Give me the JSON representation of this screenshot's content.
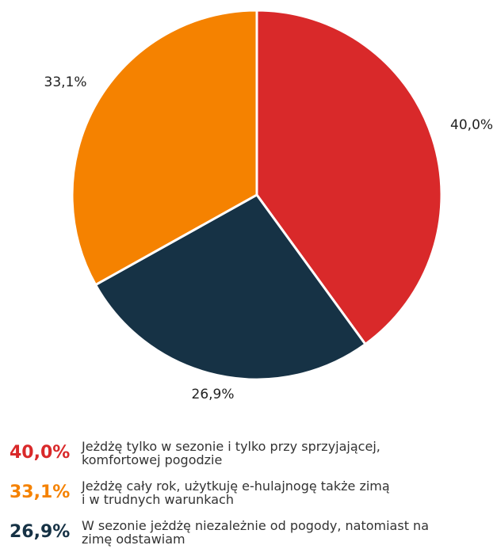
{
  "chart_data": {
    "type": "pie",
    "categories": [
      [
        "Jeżdżę tylko w sezonie i tylko przy sprzyjającej,",
        "komfortowej pogodzie"
      ],
      [
        "Jeżdżę cały rok, użytkuję e-hulajnogę także zimą",
        "i w trudnych warunkach"
      ],
      [
        "W sezonie jeżdżę niezależnie od pogody, natomiast na",
        "zimę odstawiam"
      ]
    ],
    "values": [
      40.0,
      33.1,
      26.9
    ],
    "value_labels": [
      "40,0%",
      "33,1%",
      "26,9%"
    ],
    "colors": [
      "#d9292a",
      "#f58200",
      "#163245"
    ]
  }
}
